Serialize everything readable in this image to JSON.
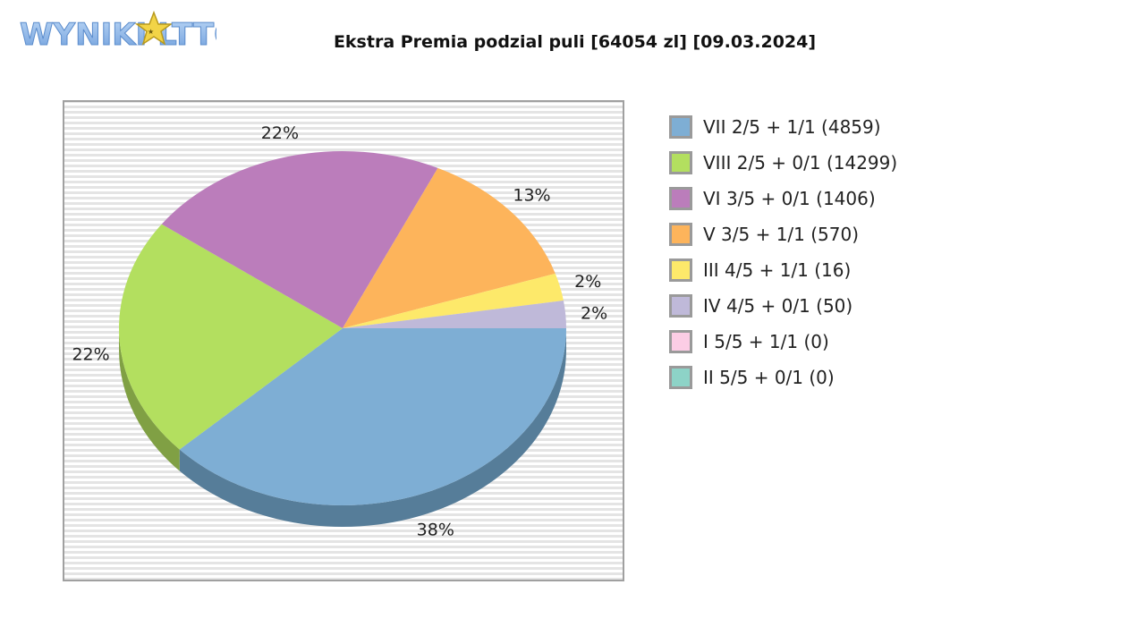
{
  "logo": {
    "text_part1": "WYNIKI L",
    "text_part2": "TTO",
    "color": "#8ab4e8"
  },
  "chart_data": {
    "type": "pie",
    "title": "Ekstra Premia podzial puli [64054 zl] [09.03.2024]",
    "legend_position": "right",
    "slices": [
      {
        "label": "VII 2/5 + 1/1 (4859)",
        "percent_label": "38%",
        "value": 38,
        "color": "#7eaed4",
        "side_color": "#567d99"
      },
      {
        "label": "VIII 2/5 + 0/1 (14299)",
        "percent_label": "22%",
        "value": 22,
        "color": "#b3df5f",
        "side_color": "#80a044"
      },
      {
        "label": "VI 3/5 + 0/1 (1406)",
        "percent_label": "22%",
        "value": 22,
        "color": "#bb7dbb",
        "side_color": "#865a86"
      },
      {
        "label": "V 3/5 + 1/1 (570)",
        "percent_label": "13%",
        "value": 13,
        "color": "#fdb45b",
        "side_color": "#b58141"
      },
      {
        "label": "III 4/5 + 1/1 (16)",
        "percent_label": "2%",
        "value": 2.5,
        "color": "#fde96a",
        "side_color": "#b5a74c"
      },
      {
        "label": "IV 4/5 + 0/1 (50)",
        "percent_label": "2%",
        "value": 2.5,
        "color": "#bfb9d9",
        "side_color": "#89859b"
      },
      {
        "label": "I 5/5 + 1/1 (0)",
        "percent_label": "",
        "value": 0,
        "color": "#fccde5",
        "side_color": "#b493a4"
      },
      {
        "label": "II 5/5 + 0/1 (0)",
        "percent_label": "",
        "value": 0,
        "color": "#8dd3c7",
        "side_color": "#65978f"
      }
    ]
  }
}
